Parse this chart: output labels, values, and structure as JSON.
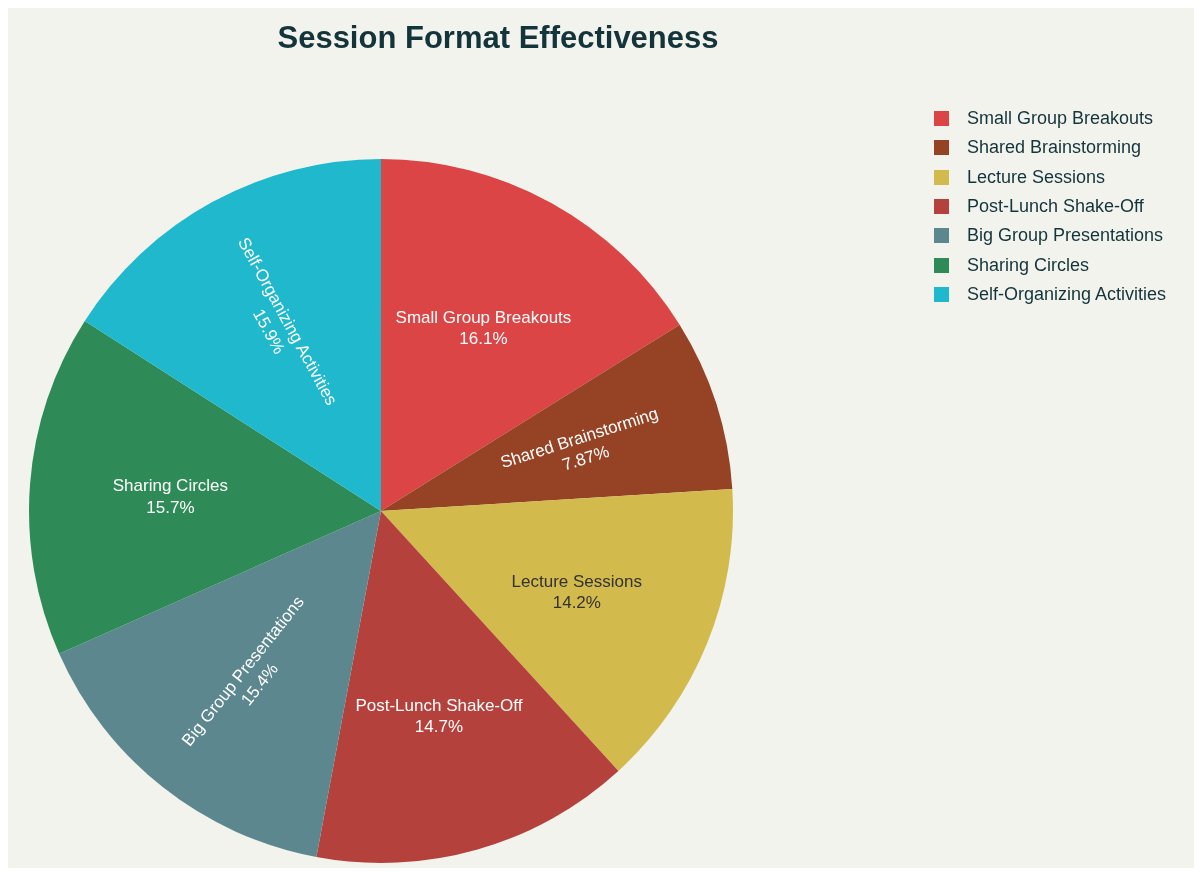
{
  "chart_data": {
    "type": "pie",
    "title": "Session Format Effectiveness",
    "categories": [
      "Small Group Breakouts",
      "Shared Brainstorming",
      "Lecture Sessions",
      "Post-Lunch Shake-Off",
      "Big Group Presentations",
      "Sharing Circles",
      "Self-Organizing Activities"
    ],
    "values": [
      16.1,
      7.87,
      14.2,
      14.7,
      15.4,
      15.7,
      15.9
    ],
    "colors": [
      "#db4545",
      "#964325",
      "#d2ba4c",
      "#b4413c",
      "#5d878f",
      "#2e8b57",
      "#1fb8cd"
    ],
    "value_labels": [
      "16.1%",
      "7.87%",
      "14.2%",
      "14.7%",
      "15.4%",
      "15.7%",
      "15.9%"
    ],
    "legend": "top right"
  }
}
